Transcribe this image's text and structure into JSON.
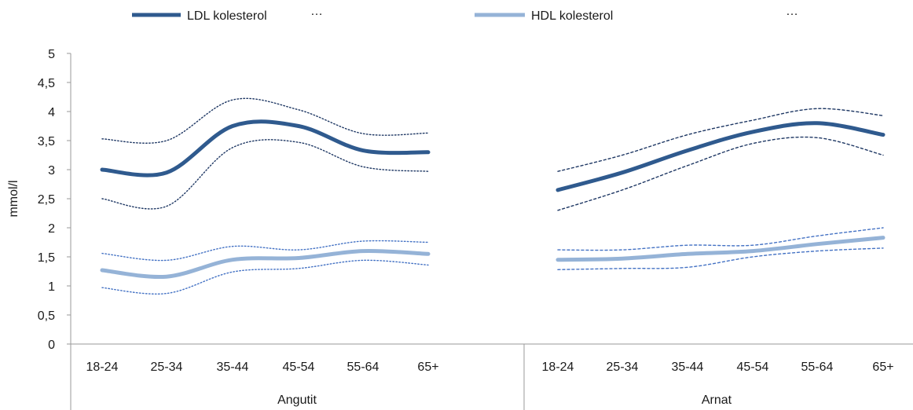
{
  "chart_data": {
    "type": "line",
    "ylabel": "mmol/l",
    "ylim": [
      0,
      5
    ],
    "y_ticks": [
      "0",
      "0,5",
      "1",
      "1,5",
      "2",
      "2,5",
      "3",
      "3,5",
      "4",
      "4,5",
      "5"
    ],
    "y_tick_values": [
      0,
      0.5,
      1,
      1.5,
      2,
      2.5,
      3,
      3.5,
      4,
      4.5,
      5
    ],
    "grid": false,
    "legend_position": "top",
    "legend": [
      {
        "name": "LDL kolesterol",
        "color": "#2f5a8e",
        "dotted": "…"
      },
      {
        "name": "HDL kolesterol",
        "color": "#95b3d7",
        "dotted": "…"
      }
    ],
    "groups": [
      {
        "label": "Angutit",
        "categories": [
          "18-24",
          "25-34",
          "35-44",
          "45-54",
          "55-64",
          "65+"
        ],
        "series": [
          {
            "name": "LDL kolesterol",
            "values": [
              3.0,
              2.95,
              3.75,
              3.75,
              3.33,
              3.3
            ],
            "lower": [
              2.5,
              2.37,
              3.38,
              3.47,
              3.05,
              2.97
            ],
            "upper": [
              3.53,
              3.5,
              4.2,
              4.03,
              3.62,
              3.63
            ]
          },
          {
            "name": "HDL kolesterol",
            "values": [
              1.27,
              1.16,
              1.45,
              1.48,
              1.6,
              1.55
            ],
            "lower": [
              0.97,
              0.87,
              1.24,
              1.3,
              1.44,
              1.36
            ],
            "upper": [
              1.56,
              1.44,
              1.68,
              1.62,
              1.77,
              1.75
            ]
          }
        ]
      },
      {
        "label": "Arnat",
        "categories": [
          "18-24",
          "25-34",
          "35-44",
          "45-54",
          "55-64",
          "65+"
        ],
        "series": [
          {
            "name": "LDL kolesterol",
            "values": [
              2.65,
              2.95,
              3.33,
              3.65,
              3.8,
              3.6
            ],
            "lower": [
              2.3,
              2.65,
              3.07,
              3.45,
              3.55,
              3.25
            ],
            "upper": [
              2.97,
              3.25,
              3.6,
              3.85,
              4.05,
              3.93
            ]
          },
          {
            "name": "HDL kolesterol",
            "values": [
              1.45,
              1.47,
              1.55,
              1.6,
              1.72,
              1.83
            ],
            "lower": [
              1.28,
              1.3,
              1.32,
              1.5,
              1.6,
              1.65
            ],
            "upper": [
              1.62,
              1.62,
              1.7,
              1.7,
              1.86,
              2.0
            ]
          }
        ]
      }
    ]
  }
}
